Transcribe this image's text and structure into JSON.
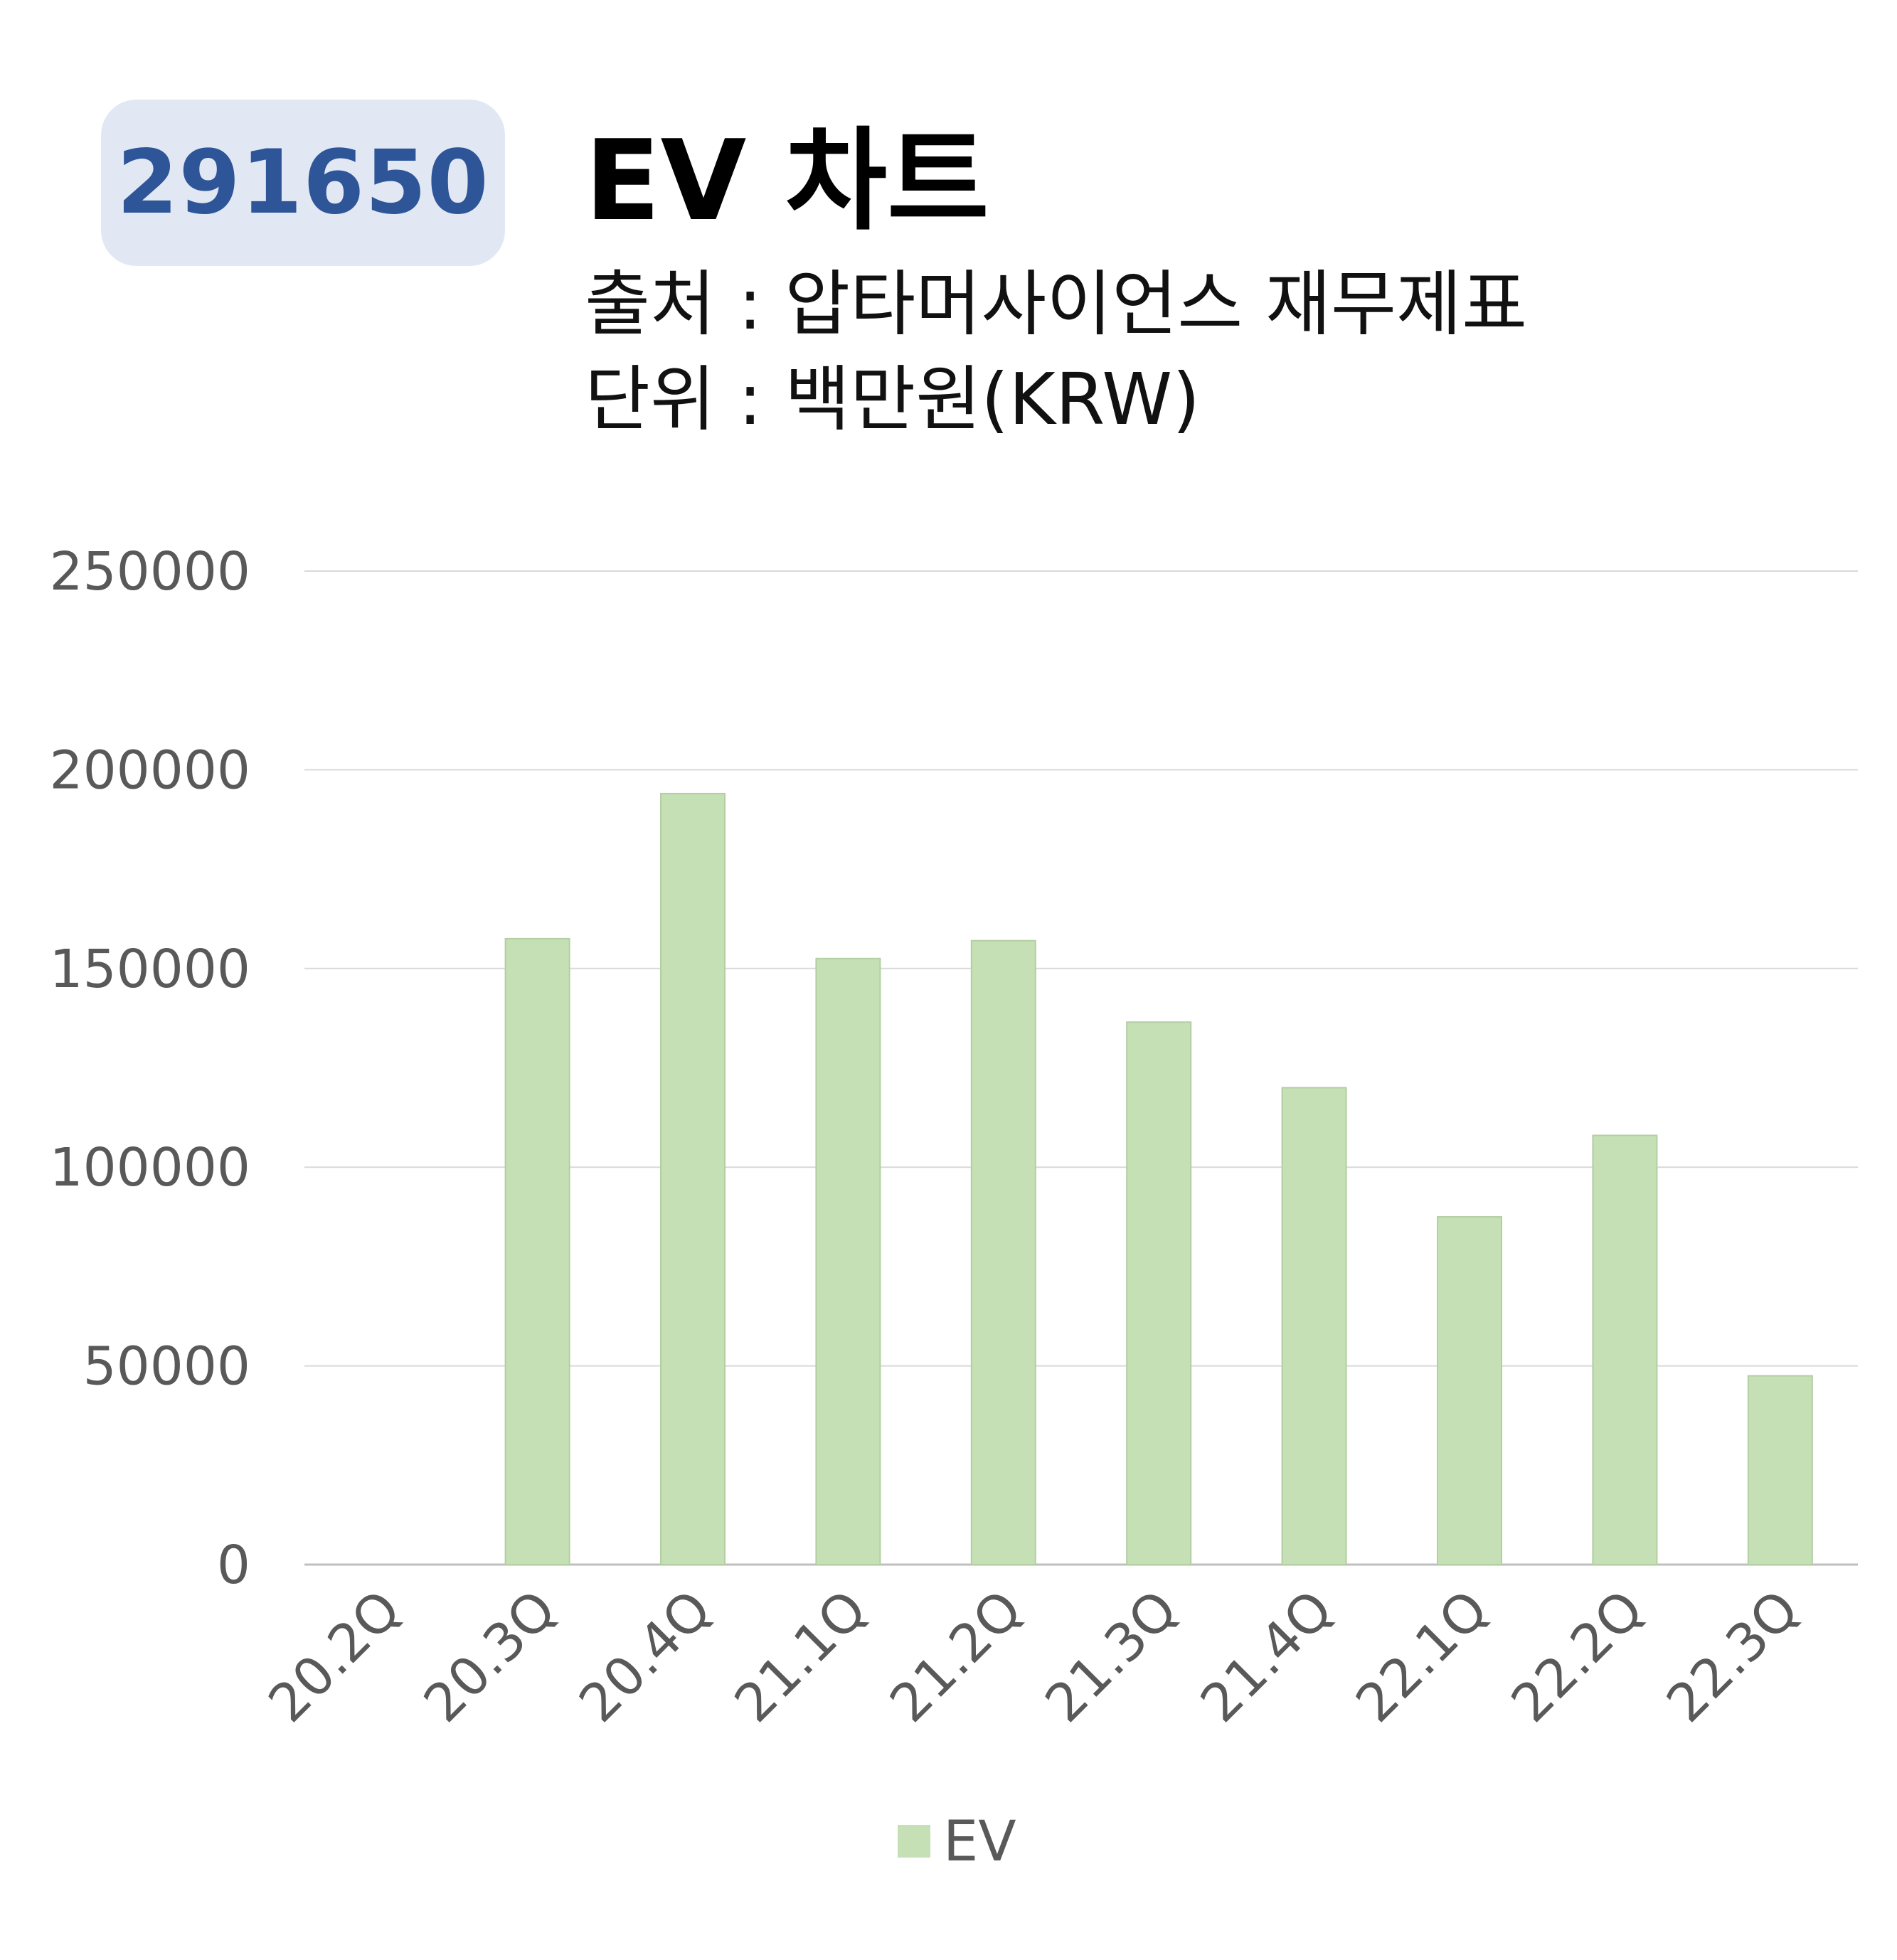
{
  "header": {
    "code": "291650",
    "title": "EV 차트",
    "source": "출처 : 압타머사이언스 재무제표",
    "unit": "단위 : 백만원(KRW)"
  },
  "colors": {
    "bar": "#c5e0b4",
    "bar_edge": "#b3cfa2",
    "grid": "#d9d9d9",
    "badge_bg": "#e2e8f3",
    "badge_text": "#2d5597"
  },
  "chart_data": {
    "type": "bar",
    "categories": [
      "20.2Q",
      "20.3Q",
      "20.4Q",
      "21.1Q",
      "21.2Q",
      "21.3Q",
      "21.4Q",
      "22.1Q",
      "22.2Q",
      "22.3Q"
    ],
    "series": [
      {
        "name": "EV",
        "values": [
          0,
          157500,
          194000,
          152500,
          157000,
          136500,
          120000,
          87500,
          108000,
          47500
        ]
      }
    ],
    "yticks": [
      "0",
      "50000",
      "100000",
      "150000",
      "200000",
      "250000"
    ],
    "ylim": [
      0,
      250000
    ],
    "grid": true,
    "legend": "bottom"
  }
}
